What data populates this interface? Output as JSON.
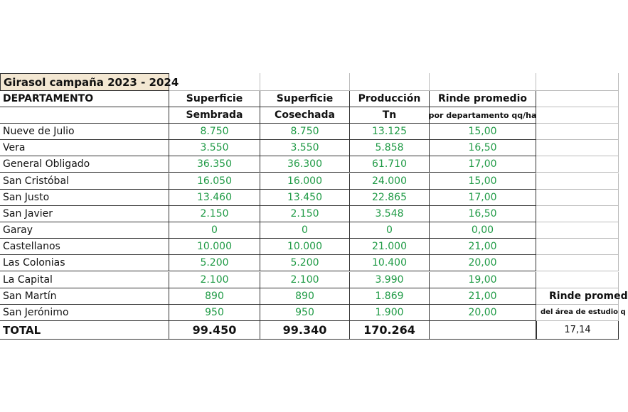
{
  "table": {
    "title": "Girasol campaña 2023 - 2024",
    "header": [
      "DEPARTAMENTO",
      "Superficie",
      "Superficie",
      "Producción",
      "Rinde promedio"
    ],
    "header_sub": [
      "Sembrada",
      "Cosechada",
      "Tn",
      "por departamento qq/ha"
    ],
    "rows": [
      [
        "Nueve de Julio",
        "8.750",
        "8.750",
        "13.125",
        "15,00"
      ],
      [
        "Vera",
        "3.550",
        "3.550",
        "5.858",
        "16,50"
      ],
      [
        "General Obligado",
        "36.350",
        "36.300",
        "61.710",
        "17,00"
      ],
      [
        "San Cristóbal",
        "16.050",
        "16.000",
        "24.000",
        "15,00"
      ],
      [
        "San Justo",
        "13.460",
        "13.450",
        "22.865",
        "17,00"
      ],
      [
        "San Javier",
        "2.150",
        "2.150",
        "3.548",
        "16,50"
      ],
      [
        "Garay",
        "0",
        "0",
        "0",
        "0,00"
      ],
      [
        "Castellanos",
        "10.000",
        "10.000",
        "21.000",
        "21,00"
      ],
      [
        "Las Colonias",
        "5.200",
        "5.200",
        "10.400",
        "20,00"
      ],
      [
        "La Capital",
        "2.100",
        "2.100",
        "3.990",
        "19,00"
      ],
      [
        "San Martín",
        "890",
        "890",
        "1.869",
        "21,00"
      ],
      [
        "San Jerónimo",
        "950",
        "950",
        "1.900",
        "20,00"
      ]
    ],
    "total": [
      "TOTAL",
      "99.450",
      "99.340",
      "170.264"
    ],
    "side": {
      "label": "Rinde promed",
      "sublabel": "del área de estudio q",
      "value": "17,14"
    }
  }
}
